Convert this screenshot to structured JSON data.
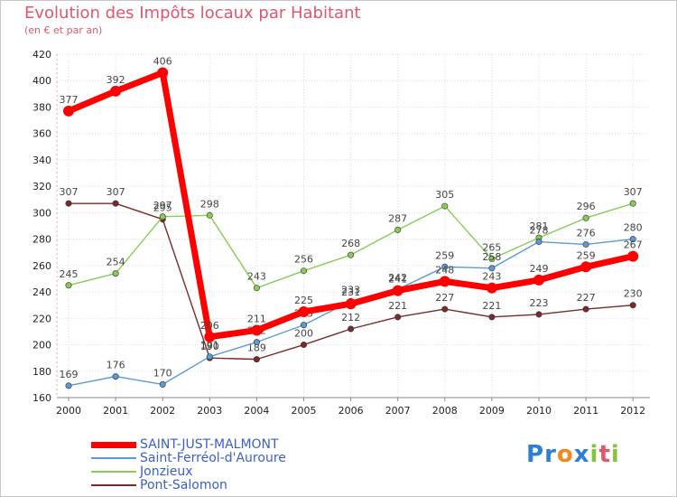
{
  "chart_data": {
    "type": "line",
    "title": "Evolution des Impôts locaux par Habitant",
    "subtitle": "(en € et par an)",
    "xlabel": "",
    "ylabel": "",
    "categories": [
      "2000",
      "2001",
      "2002",
      "2003",
      "2004",
      "2005",
      "2006",
      "2007",
      "2008",
      "2009",
      "2010",
      "2011",
      "2012"
    ],
    "ylim": [
      160,
      420
    ],
    "yticks": [
      160,
      180,
      200,
      220,
      240,
      260,
      280,
      300,
      320,
      340,
      360,
      380,
      400,
      420
    ],
    "grid": true,
    "legend_position": "bottom-left",
    "series": [
      {
        "name": "Pont-Salomon",
        "color": "#7a2a2a",
        "values": [
          307,
          307,
          295,
          190,
          189,
          200,
          212,
          221,
          227,
          221,
          223,
          227,
          230
        ]
      },
      {
        "name": "Jonzieux",
        "color": "#88cc55",
        "values": [
          245,
          254,
          297,
          298,
          243,
          256,
          268,
          287,
          305,
          265,
          281,
          296,
          307
        ]
      },
      {
        "name": "Saint-Ferréol-d'Auroure",
        "color": "#5a9ad5",
        "values": [
          169,
          176,
          170,
          191,
          202,
          215,
          233,
          242,
          259,
          258,
          278,
          276,
          280
        ]
      },
      {
        "name": "SAINT-JUST-MALMONT",
        "color": "#ff0000",
        "values": [
          377,
          392,
          406,
          206,
          211,
          225,
          231,
          241,
          248,
          243,
          249,
          259,
          267
        ]
      }
    ]
  },
  "legend": [
    {
      "name": "SAINT-JUST-MALMONT",
      "color": "#ff0000",
      "thickness": 7
    },
    {
      "name": "Saint-Ferréol-d'Auroure",
      "color": "#5a9ad5",
      "thickness": 2
    },
    {
      "name": "Jonzieux",
      "color": "#88cc55",
      "thickness": 2
    },
    {
      "name": "Pont-Salomon",
      "color": "#7a2a2a",
      "thickness": 2
    }
  ],
  "logo": {
    "letters": [
      "P",
      "r",
      "o",
      "x",
      "i",
      "t",
      "i"
    ],
    "colors": [
      "#2b7fd6",
      "#2b7fd6",
      "#f08a1c",
      "#2b7fd6",
      "#88c33c",
      "#e0566d",
      "#88c33c"
    ]
  }
}
